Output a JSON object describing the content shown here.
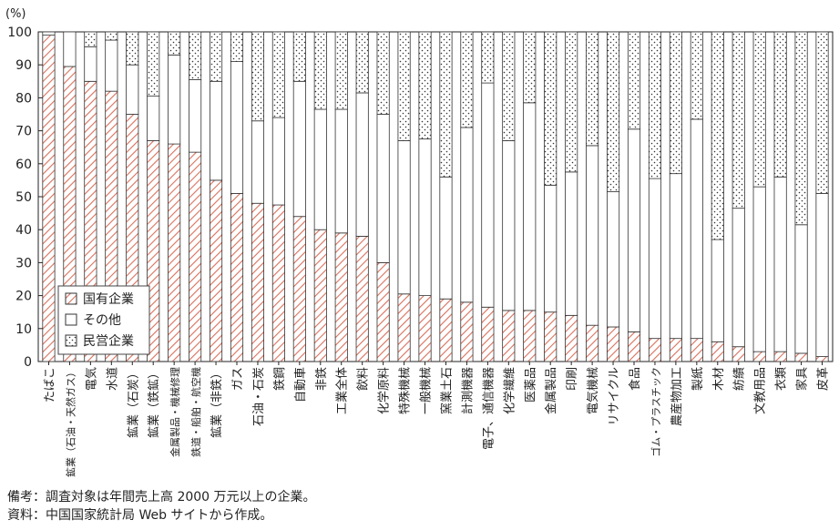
{
  "chart_data": {
    "type": "bar",
    "stacked": true,
    "ylabel": "(%)",
    "ylim": [
      0,
      100
    ],
    "yticks": [
      0,
      10,
      20,
      30,
      40,
      50,
      60,
      70,
      80,
      90,
      100
    ],
    "grid": false,
    "legend_position": "bottom-left",
    "categories": [
      "たばこ",
      "鉱業（石油・天然ガス）",
      "電気",
      "水道",
      "鉱業（石炭）",
      "鉱業（鉄鉱）",
      "金属製品・機械修理",
      "鉄道・船舶・航空機",
      "鉱業（非鉄）",
      "ガス",
      "石油・石炭",
      "鉄鋼",
      "自動車",
      "非鉄",
      "工業全体",
      "飲料",
      "化学原料",
      "特殊機械",
      "一般機械",
      "窯業土石",
      "計測機器",
      "電子、通信機器",
      "化学繊維",
      "医薬品",
      "金属製品",
      "印刷",
      "電気機械",
      "リサイクル",
      "食品",
      "ゴム・プラスチック",
      "農産物加工",
      "製紙",
      "木材",
      "紡績",
      "文教用品",
      "衣類",
      "家具",
      "皮革"
    ],
    "series": [
      {
        "name": "国有企業",
        "color": "#d9705c",
        "values": [
          99,
          89.5,
          85,
          82,
          75,
          67,
          66,
          63.5,
          55,
          51,
          48,
          47.5,
          44,
          40,
          39,
          38,
          30,
          20.5,
          20,
          19,
          18,
          16.5,
          15.5,
          15.5,
          15,
          14,
          11,
          10.5,
          9,
          7,
          7,
          7,
          6,
          4.5,
          3,
          3,
          2.5,
          1.5
        ]
      },
      {
        "name": "その他",
        "color": "#ffffff",
        "values": [
          1,
          10.5,
          10.5,
          15.5,
          15,
          13.5,
          27,
          22,
          30,
          40,
          25,
          26.5,
          41,
          36.5,
          37.5,
          43.5,
          45,
          46.5,
          47.5,
          37,
          53,
          68,
          51.5,
          63,
          38.5,
          43.5,
          54.5,
          41,
          61.5,
          48.5,
          50,
          66.5,
          31,
          42,
          50,
          53,
          39,
          49.5
        ]
      },
      {
        "name": "民営企業",
        "color": "#ffffff",
        "values": [
          0,
          0,
          4.5,
          2.5,
          10,
          19.5,
          7,
          14.5,
          15,
          9,
          27,
          26,
          15,
          23.5,
          23.5,
          18.5,
          25,
          33,
          32.5,
          44,
          29,
          15.5,
          33,
          21.5,
          46.5,
          42.5,
          34.5,
          48.5,
          29.5,
          44.5,
          43,
          26.5,
          63,
          53.5,
          47,
          44,
          58.5,
          49
        ]
      }
    ]
  },
  "notes": {
    "line1": "備考：調査対象は年間売上高 2000 万元以上の企業。",
    "line2": "資料：中国国家統計局 Web サイトから作成。"
  }
}
